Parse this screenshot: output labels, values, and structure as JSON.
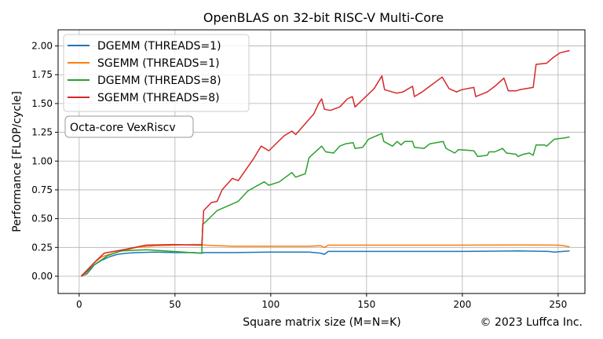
{
  "chart_data": {
    "type": "line",
    "title": "OpenBLAS on 32-bit RISC-V Multi-Core",
    "xlabel": "Square matrix size (M=N=K)",
    "ylabel": "Performance [FLOP/cycle]",
    "xlim": [
      -11,
      264
    ],
    "ylim": [
      -0.15,
      2.14
    ],
    "xticks": [
      0,
      50,
      100,
      150,
      200,
      250
    ],
    "yticks": [
      0.0,
      0.25,
      0.5,
      0.75,
      1.0,
      1.25,
      1.5,
      1.75,
      2.0
    ],
    "ytick_labels": [
      "0.00",
      "0.25",
      "0.50",
      "0.75",
      "1.00",
      "1.25",
      "1.50",
      "1.75",
      "2.00"
    ],
    "grid": true,
    "legend_position": "top-left",
    "annotation": "Octa-core VexRiscv",
    "copyright": "© 2023 Luffca Inc.",
    "series": [
      {
        "name": "DGEMM (THREADS=1)",
        "color": "#1f77b4",
        "x": [
          1,
          4,
          8,
          12,
          16,
          20,
          25,
          30,
          40,
          50,
          60,
          64,
          65,
          80,
          100,
          120,
          126,
          128,
          130,
          150,
          180,
          200,
          230,
          245,
          248,
          256
        ],
        "y": [
          0,
          0.02,
          0.1,
          0.14,
          0.17,
          0.19,
          0.2,
          0.205,
          0.21,
          0.205,
          0.205,
          0.2,
          0.205,
          0.205,
          0.21,
          0.21,
          0.2,
          0.19,
          0.215,
          0.215,
          0.215,
          0.215,
          0.22,
          0.215,
          0.21,
          0.22
        ]
      },
      {
        "name": "SGEMM (THREADS=1)",
        "color": "#ff7f0e",
        "x": [
          1,
          4,
          8,
          12,
          16,
          20,
          25,
          30,
          40,
          50,
          60,
          64,
          65,
          80,
          100,
          120,
          126,
          128,
          130,
          150,
          180,
          200,
          230,
          250,
          253,
          256
        ],
        "y": [
          0,
          0.03,
          0.12,
          0.17,
          0.19,
          0.21,
          0.23,
          0.25,
          0.265,
          0.27,
          0.275,
          0.275,
          0.27,
          0.26,
          0.26,
          0.26,
          0.265,
          0.25,
          0.27,
          0.27,
          0.27,
          0.27,
          0.272,
          0.27,
          0.265,
          0.255
        ]
      },
      {
        "name": "DGEMM (THREADS=8)",
        "color": "#2ca02c",
        "x": [
          1,
          8,
          15,
          22,
          35,
          49,
          63,
          64,
          64.5,
          66.5,
          72,
          83,
          88,
          96.6,
          99,
          104.5,
          111,
          113,
          118,
          120,
          126.6,
          128.7,
          132.8,
          136,
          139,
          143,
          144,
          148,
          151,
          158,
          159,
          163.5,
          166,
          168,
          170,
          174,
          175,
          180,
          183,
          190,
          191.5,
          196,
          198,
          206,
          208,
          213,
          214,
          217,
          221,
          223,
          228,
          229,
          232,
          235,
          237,
          238.5,
          243,
          244,
          248,
          253,
          256
        ],
        "y": [
          0,
          0.1,
          0.18,
          0.22,
          0.23,
          0.215,
          0.2,
          0.2,
          0.45,
          0.48,
          0.57,
          0.65,
          0.74,
          0.82,
          0.79,
          0.82,
          0.9,
          0.86,
          0.89,
          1.03,
          1.13,
          1.08,
          1.07,
          1.13,
          1.15,
          1.16,
          1.11,
          1.12,
          1.19,
          1.24,
          1.17,
          1.13,
          1.17,
          1.14,
          1.17,
          1.17,
          1.12,
          1.11,
          1.15,
          1.17,
          1.11,
          1.07,
          1.1,
          1.09,
          1.04,
          1.05,
          1.08,
          1.08,
          1.11,
          1.07,
          1.06,
          1.04,
          1.06,
          1.07,
          1.05,
          1.14,
          1.14,
          1.13,
          1.19,
          1.2,
          1.21
        ]
      },
      {
        "name": "SGEMM (THREADS=8)",
        "color": "#d62728",
        "x": [
          1,
          8,
          13,
          23,
          35,
          49,
          63,
          64,
          65,
          69,
          72,
          74.6,
          80,
          83,
          91,
          95,
          99,
          107,
          111,
          113,
          122.5,
          125,
          126.6,
          128,
          131,
          136,
          140,
          142.6,
          144,
          148.4,
          154,
          158,
          159.4,
          165.6,
          169,
          174,
          175,
          179,
          183,
          189.5,
          193,
          197,
          199.6,
          206,
          207,
          213,
          217,
          221.7,
          224,
          228,
          230,
          237,
          238.5,
          244,
          247.5,
          251,
          256
        ],
        "y": [
          0,
          0.12,
          0.2,
          0.23,
          0.27,
          0.275,
          0.27,
          0.27,
          0.57,
          0.64,
          0.65,
          0.75,
          0.85,
          0.83,
          1.02,
          1.13,
          1.09,
          1.22,
          1.26,
          1.23,
          1.41,
          1.5,
          1.54,
          1.45,
          1.44,
          1.47,
          1.54,
          1.56,
          1.47,
          1.54,
          1.63,
          1.74,
          1.62,
          1.59,
          1.6,
          1.65,
          1.56,
          1.6,
          1.65,
          1.73,
          1.63,
          1.6,
          1.62,
          1.64,
          1.56,
          1.6,
          1.65,
          1.72,
          1.61,
          1.61,
          1.62,
          1.64,
          1.84,
          1.85,
          1.9,
          1.94,
          1.96
        ]
      }
    ]
  }
}
